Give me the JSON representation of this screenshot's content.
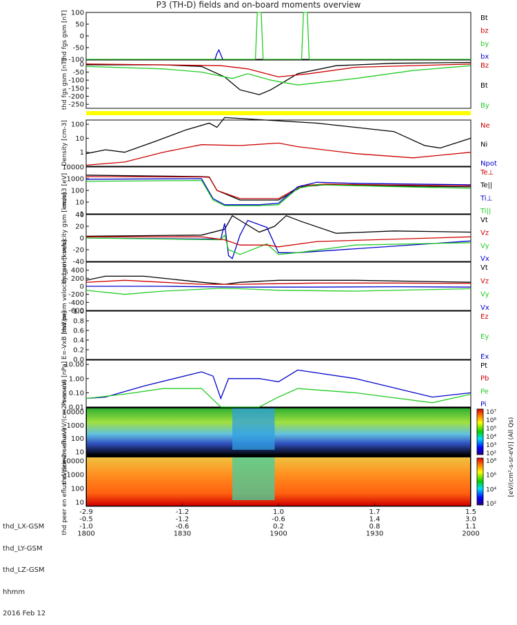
{
  "title": "P3 (TH-D) fields and on-board moments overview",
  "x_axis": {
    "rows": [
      {
        "label": "thd_LX-GSM",
        "ticks": [
          "-2.9",
          "-1.2",
          "1.0",
          "1.7",
          "1.5"
        ]
      },
      {
        "label": "thd_LY-GSM",
        "ticks": [
          "-0.5",
          "-1.2",
          "-0.6",
          "1.4",
          "3.0"
        ]
      },
      {
        "label": "thd_LZ-GSM",
        "ticks": [
          "-1.0",
          "-0.6",
          "0.2",
          "0.8",
          "1.1"
        ]
      },
      {
        "label": "hhmm",
        "ticks": [
          "1800",
          "1830",
          "1900",
          "1930",
          "2000"
        ]
      }
    ],
    "date": "2016 Feb 12"
  },
  "chart_data": [
    {
      "type": "line",
      "ylabel": "thd fgs gsm [nT]",
      "ylim": [
        -100,
        100
      ],
      "yticks": [
        "100",
        "50",
        "0",
        "-50",
        "-100"
      ],
      "legend": [
        {
          "name": "Bt",
          "color": "#000000"
        },
        {
          "name": "bz",
          "color": "#cc0000"
        },
        {
          "name": "by",
          "color": "#22cc22"
        },
        {
          "name": "bx",
          "color": "#0000cc"
        }
      ],
      "series": [
        {
          "name": "by",
          "color": "#22cc22",
          "x": [
            0,
            0.44,
            0.445,
            0.455,
            0.46,
            0.56,
            0.565,
            0.575,
            0.58,
            1.0
          ],
          "y": [
            -100,
            -100,
            100,
            100,
            -100,
            -100,
            100,
            100,
            -100,
            -100
          ]
        },
        {
          "name": "bx",
          "color": "#0000cc",
          "x": [
            0.335,
            0.34,
            0.345,
            0.35,
            0.355
          ],
          "y": [
            -100,
            -75,
            -60,
            -80,
            -100
          ]
        }
      ]
    },
    {
      "type": "line",
      "ylabel": "thd fgs gsm [nT]",
      "ylim": [
        -275,
        25
      ],
      "yticks": [
        "0",
        "-50",
        "-100",
        "-150",
        "-200",
        "-250"
      ],
      "legend": [
        {
          "name": "Bz",
          "color": "#cc0000"
        },
        {
          "name": "Bt",
          "color": "#000000"
        },
        {
          "name": "By",
          "color": "#22cc22"
        }
      ],
      "series": [
        {
          "name": "Bt",
          "color": "#000000",
          "x": [
            0,
            0.2,
            0.3,
            0.36,
            0.4,
            0.45,
            0.48,
            0.55,
            0.65,
            0.8,
            1.0
          ],
          "y": [
            -5,
            -5,
            -15,
            -80,
            -160,
            -190,
            -160,
            -60,
            -10,
            5,
            10
          ]
        },
        {
          "name": "Bz",
          "color": "#cc0000",
          "x": [
            0,
            0.2,
            0.35,
            0.42,
            0.5,
            0.58,
            0.7,
            1.0
          ],
          "y": [
            0,
            -5,
            -10,
            -30,
            -80,
            -60,
            -20,
            0
          ]
        },
        {
          "name": "By",
          "color": "#22cc22",
          "x": [
            0,
            0.2,
            0.3,
            0.38,
            0.42,
            0.48,
            0.55,
            0.7,
            0.85,
            1.0
          ],
          "y": [
            -15,
            -30,
            -50,
            -90,
            -60,
            -100,
            -130,
            -90,
            -40,
            -10
          ]
        }
      ]
    },
    {
      "type": "line",
      "ylabel": "Density [cm-3]",
      "ylog": true,
      "ylim": [
        0.1,
        200
      ],
      "yticks": [
        "100",
        "10",
        "1"
      ],
      "legend": [
        {
          "name": "Ne",
          "color": "#cc0000"
        },
        {
          "name": "Ni",
          "color": "#000000"
        },
        {
          "name": "Npot",
          "color": "#0000cc"
        }
      ],
      "series": [
        {
          "name": "Ni",
          "color": "#000000",
          "x": [
            0,
            0.05,
            0.1,
            0.18,
            0.26,
            0.32,
            0.34,
            0.36,
            0.6,
            0.8,
            0.88,
            0.92,
            1.0
          ],
          "y": [
            0.8,
            1.5,
            1.0,
            6,
            40,
            120,
            60,
            300,
            120,
            30,
            3,
            2,
            10
          ]
        },
        {
          "name": "Ne",
          "color": "#cc0000",
          "x": [
            0,
            0.1,
            0.2,
            0.3,
            0.4,
            0.5,
            0.55,
            0.7,
            0.85,
            1.0
          ],
          "y": [
            0.12,
            0.2,
            1.0,
            3.5,
            3.0,
            4.5,
            2.5,
            0.8,
            0.4,
            1.0
          ]
        }
      ]
    },
    {
      "type": "line",
      "ylabel": "mom3 [eV]",
      "ylog": true,
      "ylim": [
        1,
        10000
      ],
      "yticks": [
        "10000",
        "1000",
        "100",
        "10",
        "1"
      ],
      "legend": [
        {
          "name": "Te⊥",
          "color": "#cc0000"
        },
        {
          "name": "Te||",
          "color": "#000000"
        },
        {
          "name": "Ti⊥",
          "color": "#0000cc"
        },
        {
          "name": "Ti||",
          "color": "#22cc22"
        }
      ],
      "series": [
        {
          "name": "Te||",
          "color": "#000000",
          "x": [
            0,
            0.3,
            0.32,
            0.34,
            0.4,
            0.46,
            0.5,
            0.56,
            0.62,
            0.75,
            1.0
          ],
          "y": [
            2000,
            1500,
            1400,
            100,
            15,
            15,
            15,
            200,
            300,
            250,
            200
          ]
        },
        {
          "name": "Te⊥",
          "color": "#cc0000",
          "x": [
            0,
            0.3,
            0.32,
            0.34,
            0.4,
            0.46,
            0.5,
            0.56,
            0.62,
            0.75,
            1.0
          ],
          "y": [
            1500,
            1400,
            1300,
            100,
            20,
            20,
            20,
            250,
            350,
            300,
            250
          ]
        },
        {
          "name": "Ti⊥",
          "color": "#0000cc",
          "x": [
            0,
            0.3,
            0.33,
            0.36,
            0.45,
            0.5,
            0.55,
            0.6,
            0.7,
            1.0
          ],
          "y": [
            900,
            1000,
            20,
            6,
            6,
            8,
            200,
            500,
            400,
            300
          ]
        },
        {
          "name": "Ti||",
          "color": "#22cc22",
          "x": [
            0,
            0.3,
            0.33,
            0.36,
            0.45,
            0.5,
            0.55,
            0.6,
            0.7,
            1.0
          ],
          "y": [
            600,
            700,
            15,
            5,
            5,
            6,
            150,
            300,
            250,
            150
          ]
        }
      ]
    },
    {
      "type": "line",
      "ylabel": "thd peim velocity gsm [km/s]",
      "ylim": [
        -40,
        40
      ],
      "yticks": [
        "40",
        "20",
        "0",
        "-20",
        "-40"
      ],
      "legend": [
        {
          "name": "Vt",
          "color": "#000000"
        },
        {
          "name": "Vz",
          "color": "#cc0000"
        },
        {
          "name": "Vy",
          "color": "#22cc22"
        },
        {
          "name": "Vx",
          "color": "#0000cc"
        }
      ],
      "series": [
        {
          "name": "Vt",
          "color": "#000000",
          "x": [
            0,
            0.3,
            0.36,
            0.38,
            0.4,
            0.45,
            0.49,
            0.52,
            0.56,
            0.65,
            0.8,
            1.0
          ],
          "y": [
            3,
            5,
            15,
            38,
            30,
            10,
            20,
            38,
            28,
            8,
            12,
            10
          ]
        },
        {
          "name": "Vx",
          "color": "#0000cc",
          "x": [
            0,
            0.35,
            0.36,
            0.37,
            0.38,
            0.4,
            0.42,
            0.47,
            0.5,
            0.55,
            1.0
          ],
          "y": [
            0,
            -2,
            25,
            -30,
            -35,
            5,
            30,
            18,
            -25,
            -25,
            -5
          ]
        },
        {
          "name": "Vy",
          "color": "#22cc22",
          "x": [
            0,
            0.35,
            0.36,
            0.37,
            0.4,
            0.47,
            0.5,
            0.55,
            0.7,
            1.0
          ],
          "y": [
            0,
            -3,
            5,
            -20,
            -28,
            -10,
            -28,
            -25,
            -12,
            -8
          ]
        },
        {
          "name": "Vz",
          "color": "#cc0000",
          "x": [
            0,
            0.3,
            0.36,
            0.4,
            0.47,
            0.5,
            0.6,
            1.0
          ],
          "y": [
            2,
            2,
            -3,
            -12,
            -12,
            -15,
            -6,
            2
          ]
        }
      ]
    },
    {
      "type": "line",
      "ylabel": "thd peem velocity gsm [km/s]",
      "ylim": [
        -600,
        600
      ],
      "yticks": [
        "400",
        "200",
        "0",
        "-200",
        "-400",
        "-600"
      ],
      "legend": [
        {
          "name": "Vt",
          "color": "#000000"
        },
        {
          "name": "Vz",
          "color": "#cc0000"
        },
        {
          "name": "Vy",
          "color": "#22cc22"
        },
        {
          "name": "Vx",
          "color": "#0000cc"
        }
      ],
      "series": [
        {
          "name": "Vt",
          "color": "#000000",
          "x": [
            0,
            0.05,
            0.15,
            0.3,
            0.36,
            0.4,
            0.5,
            0.7,
            1.0
          ],
          "y": [
            150,
            250,
            250,
            100,
            50,
            100,
            150,
            150,
            100
          ]
        },
        {
          "name": "Vz",
          "color": "#cc0000",
          "x": [
            0,
            0.1,
            0.2,
            0.3,
            0.4,
            0.6,
            0.8,
            1.0
          ],
          "y": [
            100,
            150,
            100,
            50,
            50,
            80,
            80,
            70
          ]
        },
        {
          "name": "Vx",
          "color": "#0000cc",
          "x": [
            0,
            0.2,
            0.4,
            0.6,
            0.8,
            1.0
          ],
          "y": [
            0,
            0,
            -20,
            -20,
            -10,
            -20
          ]
        },
        {
          "name": "Vy",
          "color": "#22cc22",
          "x": [
            0,
            0.1,
            0.2,
            0.35,
            0.4,
            0.5,
            0.7,
            1.0
          ],
          "y": [
            -100,
            -200,
            -120,
            -50,
            -60,
            -100,
            -120,
            -60
          ]
        }
      ]
    },
    {
      "type": "line",
      "ylabel": "E=-VxB [mV/m]",
      "ylim": [
        0,
        1
      ],
      "yticks": [
        "1.0",
        "0.8",
        "0.6",
        "0.4",
        "0.2",
        "0.0"
      ],
      "legend": [
        {
          "name": "Ez",
          "color": "#cc0000"
        },
        {
          "name": "Ey",
          "color": "#22cc22"
        },
        {
          "name": "Ex",
          "color": "#0000cc"
        }
      ],
      "series": []
    },
    {
      "type": "line",
      "ylabel": "Pressure [nPa]",
      "ylog": true,
      "ylim": [
        0.01,
        20
      ],
      "yticks": [
        "10.00",
        "1.00",
        "0.10",
        "0.01"
      ],
      "legend": [
        {
          "name": "Pt",
          "color": "#000000"
        },
        {
          "name": "Pb",
          "color": "#cc0000"
        },
        {
          "name": "Pe",
          "color": "#22cc22"
        },
        {
          "name": "Pi",
          "color": "#0000cc"
        }
      ],
      "series": [
        {
          "name": "Pi",
          "color": "#0000cc",
          "x": [
            0,
            0.05,
            0.15,
            0.3,
            0.33,
            0.35,
            0.37,
            0.4,
            0.45,
            0.5,
            0.55,
            0.7,
            0.9,
            1.0
          ],
          "y": [
            0.04,
            0.05,
            0.3,
            3.0,
            1.5,
            0.04,
            1.0,
            1.0,
            1.0,
            0.6,
            4.0,
            1.0,
            0.05,
            0.1
          ]
        },
        {
          "name": "Pe",
          "color": "#22cc22",
          "x": [
            0,
            0.1,
            0.2,
            0.3,
            0.35,
            0.45,
            0.5,
            0.55,
            0.7,
            0.9,
            1.0
          ],
          "y": [
            0.04,
            0.08,
            0.2,
            0.2,
            0.01,
            0.01,
            0.05,
            0.2,
            0.1,
            0.02,
            0.08
          ]
        }
      ]
    },
    {
      "type": "heatmap",
      "ylabel": "thd peir en eflux eV/(cm2-s-sr-eV)",
      "ylog": true,
      "yticks": [
        "10000",
        "1000",
        "100",
        "10"
      ],
      "colorbar": {
        "ticks": [
          "10⁷",
          "10⁶",
          "10⁵",
          "10⁴",
          "10³",
          "10²"
        ],
        "label": "[eV/(cm²-s-sr-eV)] (All Qs)"
      }
    },
    {
      "type": "heatmap",
      "ylabel": "thd peer en eflux eV/(cm2-s-sr-eV)",
      "ylog": true,
      "yticks": [
        "10000",
        "1000",
        "100",
        "10"
      ],
      "colorbar": {
        "ticks": [
          "10⁸",
          "10⁶",
          "10⁴",
          "10²"
        ],
        "label": "[eV/(cm²-s-sr-eV)] (All Qs)"
      }
    }
  ]
}
